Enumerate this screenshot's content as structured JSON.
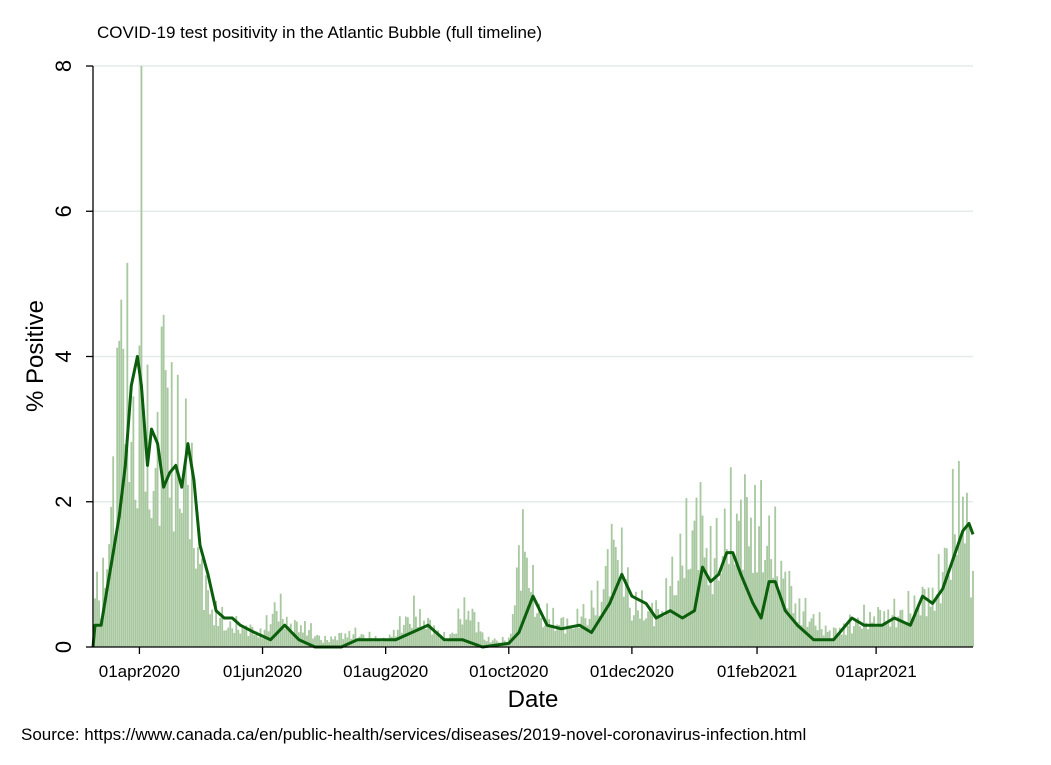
{
  "chart_data": {
    "type": "bar",
    "title": "COVID-19 test positivity in the Atlantic Bubble (full timeline)",
    "xlabel": "Date",
    "ylabel": "% Positive",
    "source": "Source: https://www.canada.ca/en/public-health/services/diseases/2019-novel-coronavirus-infection.html",
    "x_range": [
      "2020-03-09",
      "2021-05-19"
    ],
    "ylim": [
      0,
      8
    ],
    "yticks": [
      0,
      2,
      4,
      6,
      8
    ],
    "xticks": [
      "01apr2020",
      "01jun2020",
      "01aug2020",
      "01oct2020",
      "01dec2020",
      "01feb2021",
      "01apr2021"
    ],
    "grid": "horizontal",
    "colors": {
      "bars": "#a8c8a0",
      "line": "#0b5e0b",
      "grid": "#e3ebeb"
    },
    "series": [
      {
        "type": "bar",
        "daily_points": [
          [
            "2020-03-10",
            0.9
          ],
          [
            "2020-03-13",
            0.6
          ],
          [
            "2020-03-15",
            1.2
          ],
          [
            "2020-03-17",
            1.6
          ],
          [
            "2020-03-19",
            2.2
          ],
          [
            "2020-03-22",
            4.0
          ],
          [
            "2020-03-23",
            5.7
          ],
          [
            "2020-03-25",
            4.4
          ],
          [
            "2020-03-27",
            3.5
          ],
          [
            "2020-03-29",
            2.6
          ],
          [
            "2020-03-31",
            3.2
          ],
          [
            "2020-04-02",
            7.3
          ],
          [
            "2020-04-03",
            3.7
          ],
          [
            "2020-04-05",
            2.8
          ],
          [
            "2020-04-08",
            2.3
          ],
          [
            "2020-04-11",
            3.0
          ],
          [
            "2020-04-14",
            4.8
          ],
          [
            "2020-04-16",
            3.5
          ],
          [
            "2020-04-18",
            2.5
          ],
          [
            "2020-04-21",
            2.9
          ],
          [
            "2020-04-24",
            2.8
          ],
          [
            "2020-04-27",
            2.0
          ],
          [
            "2020-04-30",
            1.4
          ],
          [
            "2020-05-03",
            0.9
          ],
          [
            "2020-05-06",
            0.6
          ],
          [
            "2020-05-09",
            0.5
          ],
          [
            "2020-05-12",
            0.4
          ],
          [
            "2020-05-15",
            0.3
          ],
          [
            "2020-05-20",
            0.3
          ],
          [
            "2020-06-01",
            0.2
          ],
          [
            "2020-06-08",
            0.6
          ],
          [
            "2020-06-15",
            0.3
          ],
          [
            "2020-06-22",
            0.3
          ],
          [
            "2020-07-01",
            0.1
          ],
          [
            "2020-07-15",
            0.2
          ],
          [
            "2020-08-01",
            0.1
          ],
          [
            "2020-08-15",
            0.5
          ],
          [
            "2020-09-01",
            0.1
          ],
          [
            "2020-09-10",
            0.6
          ],
          [
            "2020-09-20",
            0.1
          ],
          [
            "2020-10-01",
            0.1
          ],
          [
            "2020-10-08",
            1.6
          ],
          [
            "2020-10-15",
            0.5
          ],
          [
            "2020-11-01",
            0.3
          ],
          [
            "2020-11-15",
            0.7
          ],
          [
            "2020-11-23",
            1.6
          ],
          [
            "2020-12-01",
            0.6
          ],
          [
            "2020-12-15",
            0.5
          ],
          [
            "2021-01-03",
            1.9
          ],
          [
            "2021-01-10",
            1.2
          ],
          [
            "2021-01-20",
            1.8
          ],
          [
            "2021-01-28",
            1.9
          ],
          [
            "2021-02-08",
            1.5
          ],
          [
            "2021-02-20",
            0.6
          ],
          [
            "2021-03-10",
            0.2
          ],
          [
            "2021-03-25",
            0.4
          ],
          [
            "2021-04-15",
            0.5
          ],
          [
            "2021-05-01",
            0.8
          ],
          [
            "2021-05-14",
            2.3
          ],
          [
            "2021-05-19",
            0.9
          ]
        ]
      },
      {
        "type": "line",
        "points": [
          [
            "2020-03-09",
            0.0
          ],
          [
            "2020-03-10",
            0.3
          ],
          [
            "2020-03-13",
            0.3
          ],
          [
            "2020-03-16",
            0.8
          ],
          [
            "2020-03-19",
            1.3
          ],
          [
            "2020-03-22",
            1.8
          ],
          [
            "2020-03-25",
            2.5
          ],
          [
            "2020-03-28",
            3.6
          ],
          [
            "2020-03-31",
            4.0
          ],
          [
            "2020-04-02",
            3.6
          ],
          [
            "2020-04-05",
            2.5
          ],
          [
            "2020-04-07",
            3.0
          ],
          [
            "2020-04-10",
            2.8
          ],
          [
            "2020-04-13",
            2.2
          ],
          [
            "2020-04-16",
            2.4
          ],
          [
            "2020-04-19",
            2.5
          ],
          [
            "2020-04-22",
            2.2
          ],
          [
            "2020-04-25",
            2.8
          ],
          [
            "2020-04-28",
            2.3
          ],
          [
            "2020-05-01",
            1.4
          ],
          [
            "2020-05-05",
            1.0
          ],
          [
            "2020-05-09",
            0.5
          ],
          [
            "2020-05-13",
            0.4
          ],
          [
            "2020-05-17",
            0.4
          ],
          [
            "2020-05-21",
            0.3
          ],
          [
            "2020-05-28",
            0.2
          ],
          [
            "2020-06-05",
            0.1
          ],
          [
            "2020-06-12",
            0.3
          ],
          [
            "2020-06-19",
            0.1
          ],
          [
            "2020-06-27",
            0.0
          ],
          [
            "2020-07-10",
            0.0
          ],
          [
            "2020-07-18",
            0.1
          ],
          [
            "2020-07-28",
            0.1
          ],
          [
            "2020-08-06",
            0.1
          ],
          [
            "2020-08-14",
            0.2
          ],
          [
            "2020-08-22",
            0.3
          ],
          [
            "2020-08-30",
            0.1
          ],
          [
            "2020-09-08",
            0.1
          ],
          [
            "2020-09-18",
            0.0
          ],
          [
            "2020-10-01",
            0.05
          ],
          [
            "2020-10-06",
            0.2
          ],
          [
            "2020-10-13",
            0.7
          ],
          [
            "2020-10-20",
            0.3
          ],
          [
            "2020-10-27",
            0.25
          ],
          [
            "2020-11-05",
            0.3
          ],
          [
            "2020-11-11",
            0.2
          ],
          [
            "2020-11-20",
            0.6
          ],
          [
            "2020-11-26",
            1.0
          ],
          [
            "2020-12-01",
            0.7
          ],
          [
            "2020-12-08",
            0.6
          ],
          [
            "2020-12-13",
            0.4
          ],
          [
            "2020-12-20",
            0.5
          ],
          [
            "2020-12-26",
            0.4
          ],
          [
            "2021-01-01",
            0.5
          ],
          [
            "2021-01-05",
            1.1
          ],
          [
            "2021-01-09",
            0.9
          ],
          [
            "2021-01-13",
            1.0
          ],
          [
            "2021-01-17",
            1.3
          ],
          [
            "2021-01-20",
            1.3
          ],
          [
            "2021-01-24",
            1.0
          ],
          [
            "2021-01-30",
            0.6
          ],
          [
            "2021-02-03",
            0.4
          ],
          [
            "2021-02-07",
            0.9
          ],
          [
            "2021-02-10",
            0.9
          ],
          [
            "2021-02-15",
            0.5
          ],
          [
            "2021-02-21",
            0.3
          ],
          [
            "2021-03-01",
            0.1
          ],
          [
            "2021-03-11",
            0.1
          ],
          [
            "2021-03-20",
            0.4
          ],
          [
            "2021-03-26",
            0.3
          ],
          [
            "2021-04-04",
            0.3
          ],
          [
            "2021-04-10",
            0.4
          ],
          [
            "2021-04-18",
            0.3
          ],
          [
            "2021-04-24",
            0.7
          ],
          [
            "2021-04-29",
            0.6
          ],
          [
            "2021-05-04",
            0.8
          ],
          [
            "2021-05-09",
            1.2
          ],
          [
            "2021-05-14",
            1.6
          ],
          [
            "2021-05-17",
            1.7
          ],
          [
            "2021-05-19",
            1.55
          ]
        ]
      }
    ]
  }
}
